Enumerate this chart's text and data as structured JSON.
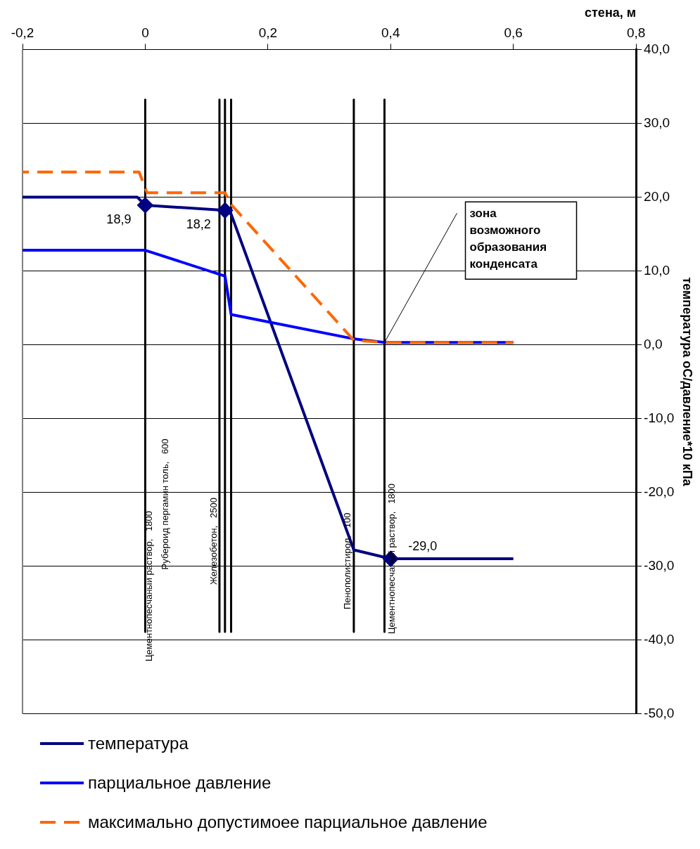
{
  "chart_data": {
    "type": "line",
    "xlabel": "стена, м",
    "ylabel": "температура оС/давление*10 кПа",
    "xlim": [
      -0.2,
      0.8
    ],
    "xticks": [
      {
        "value": -0.2,
        "label": "-0,2"
      },
      {
        "value": 0,
        "label": "0"
      },
      {
        "value": 0.2,
        "label": "0,2"
      },
      {
        "value": 0.4,
        "label": "0,4"
      },
      {
        "value": 0.6,
        "label": "0,6"
      },
      {
        "value": 0.8,
        "label": "0,8"
      }
    ],
    "ylim": [
      -50,
      40
    ],
    "yticks": [
      {
        "value": -50,
        "label": "-50,0"
      },
      {
        "value": -40,
        "label": "-40,0"
      },
      {
        "value": -30,
        "label": "-30,0"
      },
      {
        "value": -20,
        "label": "-20,0"
      },
      {
        "value": -10,
        "label": "-10,0"
      },
      {
        "value": 0,
        "label": "0,0"
      },
      {
        "value": 10,
        "label": "10,0"
      },
      {
        "value": 20,
        "label": "20,0"
      },
      {
        "value": 30,
        "label": "30,0"
      },
      {
        "value": 40,
        "label": "40,0"
      }
    ],
    "grid": "y",
    "legend": "bottom",
    "series": [
      {
        "name": "температура",
        "color": "#000080",
        "marker": "none",
        "line_style": "solid",
        "x": [
          -0.2,
          -0.013,
          0,
          0.13,
          0.14,
          0.34,
          0.4,
          0.6
        ],
        "values": [
          20.0,
          20.0,
          18.9,
          18.2,
          17.7,
          -27.8,
          -29.0,
          -29.0
        ]
      },
      {
        "name": "парциальное давление",
        "color": "#0000ff",
        "marker": "none",
        "line_style": "solid",
        "x": [
          -0.2,
          0,
          0.13,
          0.14,
          0.34,
          0.39,
          0.6
        ],
        "values": [
          12.8,
          12.8,
          9.3,
          4.1,
          0.8,
          0.3,
          0.3
        ]
      },
      {
        "name": "максимально допустимоее парциальное давление",
        "color": "#ff6600",
        "marker": "none",
        "line_style": "dashed",
        "x": [
          -0.2,
          -0.01,
          0.003,
          0.13,
          0.14,
          0.34,
          0.39,
          0.6
        ],
        "values": [
          23.4,
          23.4,
          20.6,
          20.6,
          19.0,
          0.6,
          0.3,
          0.3
        ]
      },
      {
        "type": "scatter",
        "color": "#000080",
        "marker": "diamond",
        "x": [
          0,
          0.13,
          0.4
        ],
        "values": [
          18.9,
          18.2,
          -29.0
        ],
        "value_labels": [
          "18,9",
          "18,2",
          "-29,0"
        ]
      },
      {
        "name": "Цементнопесчаный раствор,   1800",
        "color": "#000000",
        "marker": "none",
        "line_style": "solid",
        "x": [
          0,
          0
        ],
        "values": [
          33.2,
          -38.9
        ]
      },
      {
        "name": "Железобетон,   2500",
        "color": "#000000",
        "marker": "none",
        "line_style": "solid",
        "x": [
          0.121,
          0.121
        ],
        "values": [
          33.2,
          -38.9
        ]
      },
      {
        "color": "#000000",
        "marker": "none",
        "line_style": "solid",
        "x": [
          0.13,
          0.13
        ],
        "values": [
          33.2,
          -38.9
        ]
      },
      {
        "color": "#000000",
        "marker": "none",
        "line_style": "solid",
        "x": [
          0.14,
          0.14
        ],
        "values": [
          33.2,
          -38.9
        ]
      },
      {
        "name": "Пенополистирол,   100",
        "color": "#000000",
        "marker": "none",
        "line_style": "solid",
        "x": [
          0.34,
          0.34
        ],
        "values": [
          33.2,
          -38.9
        ]
      },
      {
        "name": "Цементнопесчаный раствор,   1800",
        "color": "#000000",
        "marker": "none",
        "line_style": "solid",
        "x": [
          0.39,
          0.39
        ],
        "values": [
          33.2,
          -38.9
        ]
      }
    ],
    "annotations": [
      {
        "text": "зона возможного образования конденсата",
        "x": 0.39,
        "y": 0.3
      },
      "Рубероид пергамин толь,   600"
    ]
  }
}
